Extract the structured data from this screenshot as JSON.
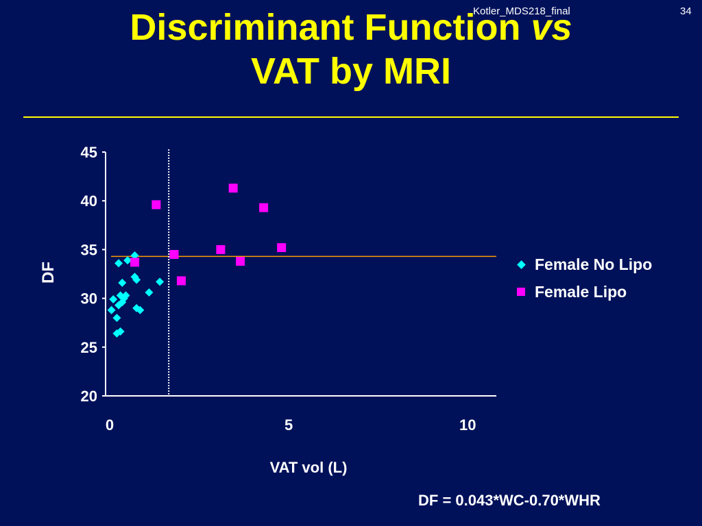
{
  "slide": {
    "header_ref": "Kotler_MDS218_final",
    "page_number": "34",
    "title_part1": "Discriminant Function",
    "title_italic": "vs",
    "title_line2": "VAT by MRI",
    "formula": "DF = 0.043*WC-0.70*WHR"
  },
  "colors": {
    "background": "#00115a",
    "title": "#ffff00",
    "no_lipo": "#00ffff",
    "lipo": "#ff00ff",
    "threshold_line": "#ff9900"
  },
  "chart_data": {
    "type": "scatter",
    "xlabel": "VAT vol (L)",
    "ylabel": "DF",
    "xlim": [
      0,
      10.8
    ],
    "ylim": [
      20,
      45
    ],
    "xticks": [
      "0",
      "5",
      "10"
    ],
    "xtick_values": [
      0,
      5,
      10
    ],
    "yticks": [
      "20",
      "25",
      "30",
      "35",
      "40",
      "45"
    ],
    "ytick_values": [
      20,
      25,
      30,
      35,
      40,
      45
    ],
    "legend_position": "right",
    "horizontal_reference_y": 34.3,
    "vertical_reference_x": 1.65,
    "series": [
      {
        "name": "Female No Lipo",
        "marker": "diamond",
        "points": [
          [
            0.05,
            28.8
          ],
          [
            0.1,
            29.9
          ],
          [
            0.2,
            28.0
          ],
          [
            0.25,
            29.3
          ],
          [
            0.2,
            26.4
          ],
          [
            0.3,
            26.6
          ],
          [
            0.35,
            29.6
          ],
          [
            0.3,
            30.3
          ],
          [
            0.4,
            30.0
          ],
          [
            0.45,
            30.3
          ],
          [
            0.35,
            31.6
          ],
          [
            0.25,
            33.6
          ],
          [
            0.5,
            33.9
          ],
          [
            0.7,
            34.4
          ],
          [
            0.7,
            32.2
          ],
          [
            0.75,
            31.9
          ],
          [
            0.75,
            29.0
          ],
          [
            0.85,
            28.8
          ],
          [
            1.1,
            30.6
          ],
          [
            1.4,
            31.7
          ]
        ]
      },
      {
        "name": "Female Lipo",
        "marker": "square",
        "points": [
          [
            0.7,
            33.7
          ],
          [
            1.3,
            39.6
          ],
          [
            1.8,
            34.5
          ],
          [
            2.0,
            31.8
          ],
          [
            3.1,
            35.0
          ],
          [
            3.45,
            41.3
          ],
          [
            3.65,
            33.8
          ],
          [
            4.3,
            39.3
          ],
          [
            4.8,
            35.2
          ]
        ]
      }
    ]
  }
}
